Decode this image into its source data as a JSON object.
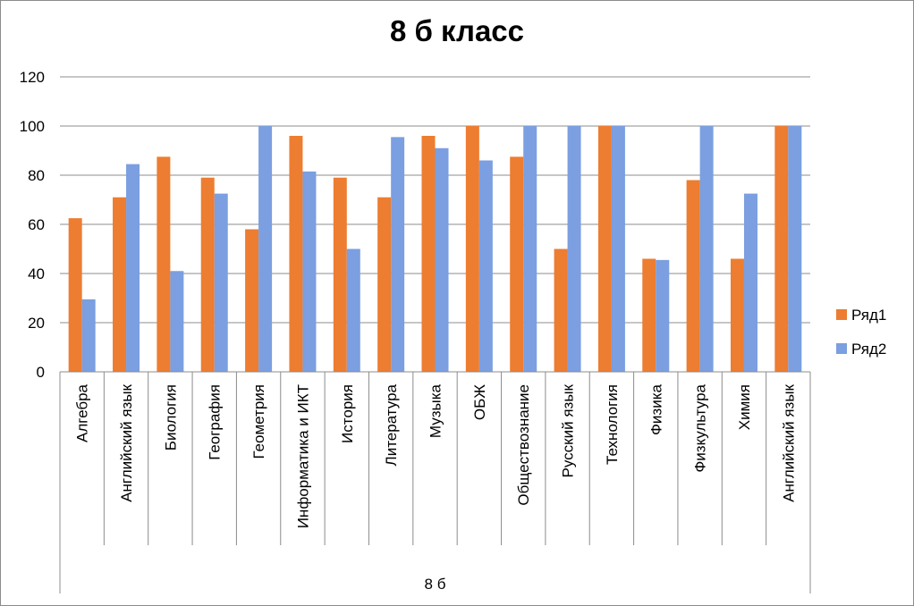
{
  "chart_data": {
    "type": "bar",
    "title": "8 б класс",
    "group_label": "8 б",
    "categories": [
      "Алгебра",
      "Английский  язык",
      "Биология",
      "География",
      "Геометрия",
      "Информатика и ИКТ",
      "История",
      "Литература",
      "Музыка",
      "ОБЖ",
      "Обществознание",
      "Русский язык",
      "Технология",
      "Физика",
      "Физкультура",
      "Химия",
      "Английский  язык"
    ],
    "series": [
      {
        "name": "Ряд1",
        "color": "#ED7D31",
        "values": [
          62.5,
          71,
          87.5,
          79,
          58,
          96,
          79,
          71,
          96,
          100,
          87.5,
          50,
          100,
          46,
          78,
          46,
          100
        ]
      },
      {
        "name": "Ряд2",
        "color": "#4472C4",
        "values": [
          29.5,
          84.5,
          41,
          72.5,
          100,
          81.5,
          50,
          95.5,
          91,
          86,
          100,
          100,
          100,
          45.5,
          100,
          72.5,
          100
        ]
      }
    ],
    "ylim": [
      0,
      120
    ],
    "yticks": [
      0,
      20,
      40,
      60,
      80,
      100,
      120
    ],
    "grid": true,
    "legend_position": "right",
    "bar_color_series1": "#ED7D31",
    "bar_color_series2": "#7B9FE0"
  }
}
